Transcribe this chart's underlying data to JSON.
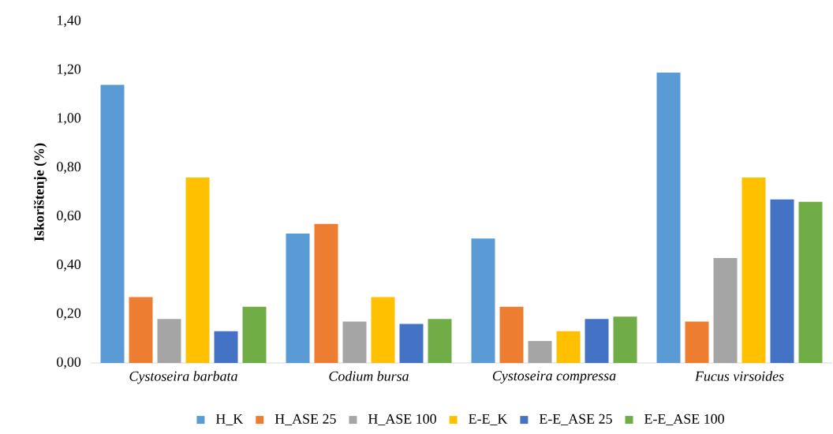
{
  "chart_data": {
    "type": "bar",
    "ylabel": "Iskorištenje (%)",
    "categories": [
      "Cystoseira barbata",
      "Codium bursa",
      "Cystoseira compressa",
      "Fucus virsoides"
    ],
    "series": [
      {
        "name": "H_K",
        "color": "#5b9bd5",
        "values": [
          1.14,
          0.53,
          0.51,
          1.19
        ]
      },
      {
        "name": "H_ASE 25",
        "color": "#ed7d31",
        "values": [
          0.27,
          0.57,
          0.23,
          0.17
        ]
      },
      {
        "name": "H_ASE 100",
        "color": "#a5a5a5",
        "values": [
          0.18,
          0.17,
          0.09,
          0.43
        ]
      },
      {
        "name": "E-E_K",
        "color": "#ffc000",
        "values": [
          0.76,
          0.27,
          0.13,
          0.76
        ]
      },
      {
        "name": "E-E_ASE 25",
        "color": "#4472c4",
        "values": [
          0.13,
          0.16,
          0.18,
          0.67
        ]
      },
      {
        "name": "E-E_ASE 100",
        "color": "#70ad47",
        "values": [
          0.23,
          0.18,
          0.19,
          0.66
        ]
      }
    ],
    "ylim": [
      0,
      1.4
    ],
    "yticks": [
      {
        "value": 0,
        "label": "0,00"
      },
      {
        "value": 0.2,
        "label": "0,20"
      },
      {
        "value": 0.4,
        "label": "0,40"
      },
      {
        "value": 0.6,
        "label": "0,60"
      },
      {
        "value": 0.8,
        "label": "0,80"
      },
      {
        "value": 1.0,
        "label": "1,00"
      },
      {
        "value": 1.2,
        "label": "1,20"
      },
      {
        "value": 1.4,
        "label": "1,40"
      }
    ],
    "grid": false,
    "legend": "bottom"
  }
}
